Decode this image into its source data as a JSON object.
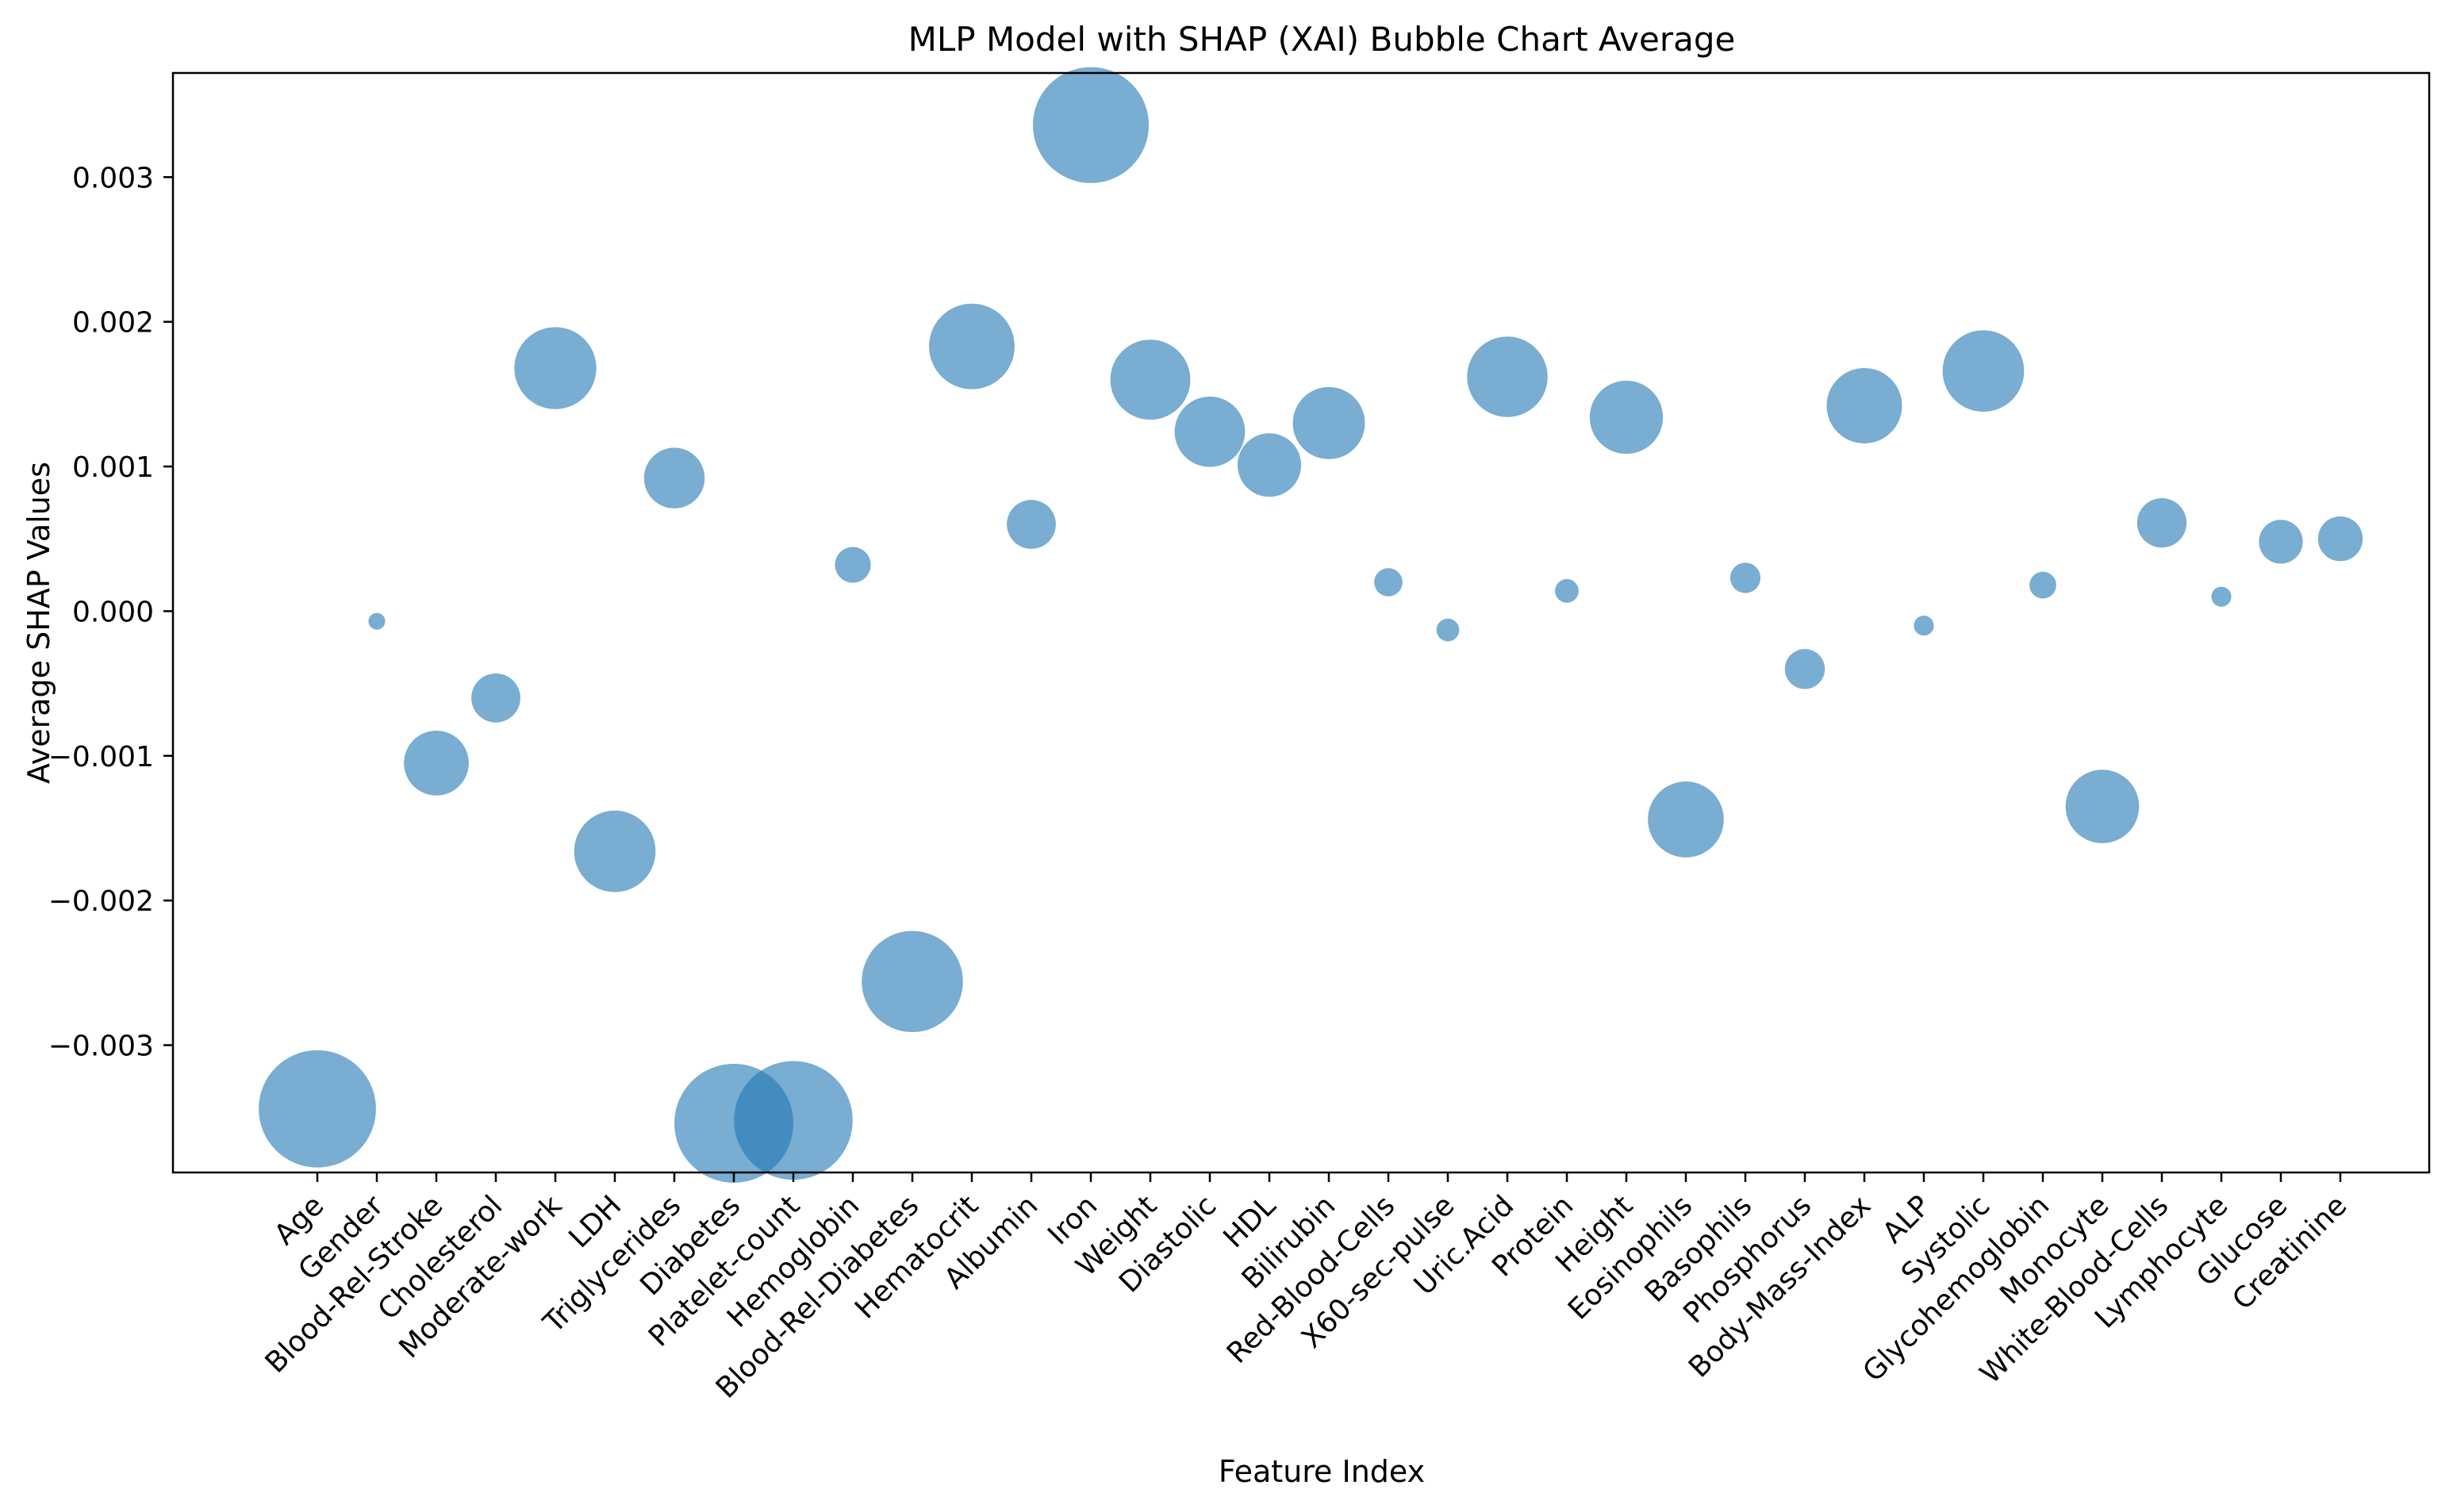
{
  "chart_data": {
    "type": "scatter",
    "title": "MLP Model with SHAP (XAI) Bubble Chart Average",
    "xlabel": "Feature Index",
    "ylabel": "Average SHAP Values",
    "ylim": [
      -0.00388,
      0.00372
    ],
    "grid": false,
    "marker_color": "#1f77b4",
    "marker_alpha": 0.6,
    "size_encoding": "absolute value of average SHAP",
    "y_ticks": [
      {
        "value": 0.003,
        "label": "0.003"
      },
      {
        "value": 0.002,
        "label": "0.002"
      },
      {
        "value": 0.001,
        "label": "0.001"
      },
      {
        "value": 0.0,
        "label": "0.000"
      },
      {
        "value": -0.001,
        "label": "−0.001"
      },
      {
        "value": -0.002,
        "label": "−0.002"
      },
      {
        "value": -0.003,
        "label": "−0.003"
      }
    ],
    "categories": [
      "Age",
      "Gender",
      "Blood-Rel-Stroke",
      "Cholesterol",
      "Moderate-work",
      "LDH",
      "Triglycerides",
      "Diabetes",
      "Platelet-count",
      "Hemoglobin",
      "Blood-Rel-Diabetes",
      "Hematocrit",
      "Albumin",
      "Iron",
      "Weight",
      "Diastolic",
      "HDL",
      "Bilirubin",
      "Red-Blood-Cells",
      "X60-sec-pulse",
      "Uric.Acid",
      "Protein",
      "Height",
      "Eosinophils",
      "Basophils",
      "Phosphorus",
      "Body-Mass-Index",
      "ALP",
      "Systolic",
      "Glycohemoglobin",
      "Monocyte",
      "White-Blood-Cells",
      "Lymphocyte",
      "Glucose",
      "Creatinine"
    ],
    "values": [
      -0.00344,
      -7e-05,
      -0.00105,
      -0.0006,
      0.00168,
      -0.00166,
      0.00092,
      -0.00354,
      -0.00352,
      0.00032,
      -0.00256,
      0.00183,
      0.0006,
      0.00336,
      0.0016,
      0.00124,
      0.00101,
      0.0013,
      0.0002,
      -0.00013,
      0.00162,
      0.00014,
      0.00134,
      -0.00144,
      0.00023,
      -0.0004,
      0.00142,
      -0.0001,
      0.00166,
      0.00018,
      -0.00135,
      0.00061,
      0.0001,
      0.00048,
      0.0005
    ]
  }
}
